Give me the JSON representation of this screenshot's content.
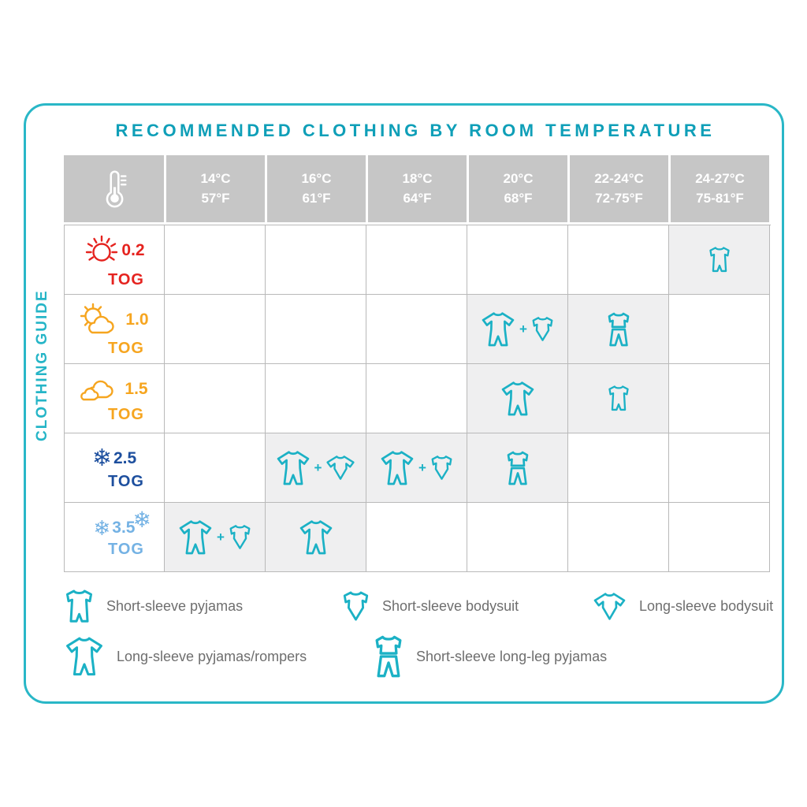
{
  "title": "RECOMMENDED CLOTHING BY ROOM TEMPERATURE",
  "side_label": "CLOTHING GUIDE",
  "glyphs": {
    "snowflake": "❄",
    "plus": "+"
  },
  "colors": {
    "accent_teal": "#0f9fb8",
    "border_teal": "#29b7c7",
    "icon_teal": "#1bb1c5",
    "header_bg": "#c6c6c6",
    "cell_highlight": "#efeff0",
    "grid_line": "#b9b9b9",
    "legend_text": "#6e6e6e",
    "red": "#e5231f",
    "orange": "#f6a51f",
    "dark_blue": "#1d4f9e",
    "light_blue": "#74b2e4"
  },
  "header": {
    "thermometer_icon": "thermometer-icon",
    "columns": [
      {
        "celsius": "14°C",
        "fahrenheit": "57°F"
      },
      {
        "celsius": "16°C",
        "fahrenheit": "61°F"
      },
      {
        "celsius": "18°C",
        "fahrenheit": "64°F"
      },
      {
        "celsius": "20°C",
        "fahrenheit": "68°F"
      },
      {
        "celsius": "22-24°C",
        "fahrenheit": "72-75°F"
      },
      {
        "celsius": "24-27°C",
        "fahrenheit": "75-81°F"
      }
    ]
  },
  "rows": [
    {
      "tog_value": "0.2",
      "tog_unit": "TOG",
      "weather_icon": "sun-icon",
      "color": "#e5231f",
      "cells": [
        [],
        [],
        [],
        [],
        [],
        [
          "short-sleeve-pyjamas"
        ]
      ]
    },
    {
      "tog_value": "1.0",
      "tog_unit": "TOG",
      "weather_icon": "sun-cloud-icon",
      "color": "#f6a51f",
      "cells": [
        [],
        [],
        [],
        [
          "long-sleeve-pyjamas",
          "short-sleeve-bodysuit"
        ],
        [
          "short-sleeve-long-leg-pyjamas"
        ],
        []
      ]
    },
    {
      "tog_value": "1.5",
      "tog_unit": "TOG",
      "weather_icon": "clouds-icon",
      "color": "#f6a51f",
      "cells": [
        [],
        [],
        [],
        [
          "long-sleeve-pyjamas"
        ],
        [
          "short-sleeve-pyjamas"
        ],
        []
      ]
    },
    {
      "tog_value": "2.5",
      "tog_unit": "TOG",
      "weather_icon": "snowflake-icon",
      "color": "#1d4f9e",
      "cells": [
        [],
        [
          "long-sleeve-pyjamas",
          "long-sleeve-bodysuit"
        ],
        [
          "long-sleeve-pyjamas",
          "short-sleeve-bodysuit"
        ],
        [
          "short-sleeve-long-leg-pyjamas"
        ],
        [],
        []
      ]
    },
    {
      "tog_value": "3.5",
      "tog_unit": "TOG",
      "weather_icon": "snowflakes-icon",
      "color": "#74b2e4",
      "cells": [
        [
          "long-sleeve-pyjamas",
          "short-sleeve-bodysuit"
        ],
        [
          "long-sleeve-pyjamas"
        ],
        [],
        [],
        [],
        []
      ]
    }
  ],
  "legend": {
    "row1": [
      {
        "icon": "short-sleeve-pyjamas",
        "label": "Short-sleeve pyjamas"
      },
      {
        "icon": "short-sleeve-bodysuit",
        "label": "Short-sleeve bodysuit"
      },
      {
        "icon": "long-sleeve-bodysuit",
        "label": "Long-sleeve bodysuit"
      }
    ],
    "row2": [
      {
        "icon": "long-sleeve-pyjamas",
        "label": "Long-sleeve pyjamas/rompers"
      },
      {
        "icon": "short-sleeve-long-leg-pyjamas",
        "label": "Short-sleeve long-leg pyjamas"
      }
    ]
  },
  "chart_data": {
    "type": "table",
    "title": "RECOMMENDED CLOTHING BY ROOM TEMPERATURE",
    "columns": [
      "14°C / 57°F",
      "16°C / 61°F",
      "18°C / 64°F",
      "20°C / 68°F",
      "22-24°C / 72-75°F",
      "24-27°C / 75-81°F"
    ],
    "rows": [
      "0.2 TOG",
      "1.0 TOG",
      "1.5 TOG",
      "2.5 TOG",
      "3.5 TOG"
    ],
    "cells": [
      [
        "",
        "",
        "",
        "",
        "",
        "Short-sleeve pyjamas"
      ],
      [
        "",
        "",
        "",
        "Long-sleeve pyjamas/rompers + Short-sleeve bodysuit",
        "Short-sleeve long-leg pyjamas",
        ""
      ],
      [
        "",
        "",
        "",
        "Long-sleeve pyjamas/rompers",
        "Short-sleeve pyjamas",
        ""
      ],
      [
        "",
        "Long-sleeve pyjamas/rompers + Long-sleeve bodysuit",
        "Long-sleeve pyjamas/rompers + Short-sleeve bodysuit",
        "Short-sleeve long-leg pyjamas",
        "",
        ""
      ],
      [
        "Long-sleeve pyjamas/rompers + Short-sleeve bodysuit",
        "Long-sleeve pyjamas/rompers",
        "",
        "",
        "",
        ""
      ]
    ]
  }
}
